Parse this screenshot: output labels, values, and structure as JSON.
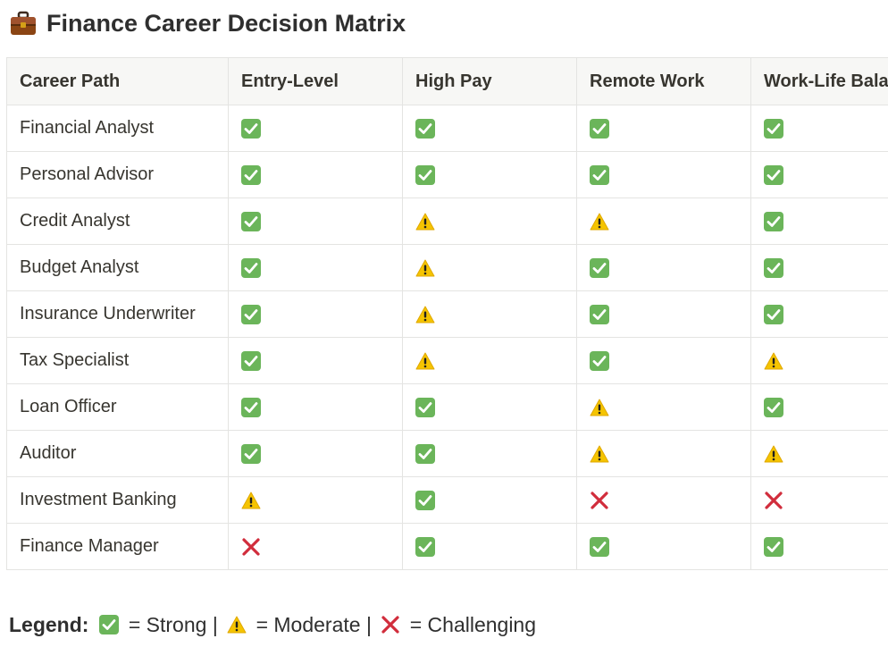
{
  "title": "Finance Career Decision Matrix",
  "title_icon": "briefcase-icon",
  "columns": [
    "Career Path",
    "Entry-Level",
    "High Pay",
    "Remote Work",
    "Work-Life Balance"
  ],
  "rows": [
    {
      "career": "Financial Analyst",
      "ratings": [
        "strong",
        "strong",
        "strong",
        "strong"
      ]
    },
    {
      "career": "Personal Advisor",
      "ratings": [
        "strong",
        "strong",
        "strong",
        "strong"
      ]
    },
    {
      "career": "Credit Analyst",
      "ratings": [
        "strong",
        "moderate",
        "moderate",
        "strong"
      ]
    },
    {
      "career": "Budget Analyst",
      "ratings": [
        "strong",
        "moderate",
        "strong",
        "strong"
      ]
    },
    {
      "career": "Insurance Underwriter",
      "ratings": [
        "strong",
        "moderate",
        "strong",
        "strong"
      ]
    },
    {
      "career": "Tax Specialist",
      "ratings": [
        "strong",
        "moderate",
        "strong",
        "moderate"
      ]
    },
    {
      "career": "Loan Officer",
      "ratings": [
        "strong",
        "strong",
        "moderate",
        "strong"
      ]
    },
    {
      "career": "Auditor",
      "ratings": [
        "strong",
        "strong",
        "moderate",
        "moderate"
      ]
    },
    {
      "career": "Investment Banking",
      "ratings": [
        "moderate",
        "strong",
        "challenging",
        "challenging"
      ]
    },
    {
      "career": "Finance Manager",
      "ratings": [
        "challenging",
        "strong",
        "strong",
        "strong"
      ]
    }
  ],
  "legend": {
    "label": "Legend:",
    "items": [
      {
        "rating": "strong",
        "text": " = Strong | "
      },
      {
        "rating": "moderate",
        "text": " = Moderate | "
      },
      {
        "rating": "challenging",
        "text": " = Challenging"
      }
    ]
  },
  "icons": {
    "strong": "check-mark-icon",
    "moderate": "warning-icon",
    "challenging": "cross-mark-icon"
  },
  "colors": {
    "strong": "#6bb55a",
    "moderate": "#f5c400",
    "challenging": "#d12d3c",
    "header_bg": "#f7f7f5",
    "border": "#e4e4e2"
  }
}
